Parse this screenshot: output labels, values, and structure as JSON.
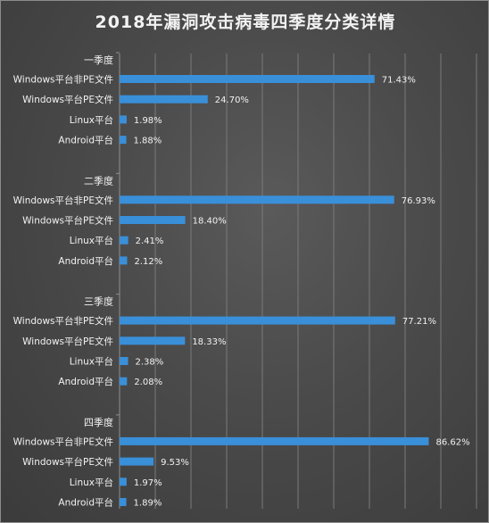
{
  "chart_data": {
    "type": "bar",
    "orientation": "horizontal",
    "title": "2018年漏洞攻击病毒四季度分类详情",
    "groups": [
      {
        "name": "一季度",
        "items": [
          {
            "label": "Windows平台非PE文件",
            "value": 71.43,
            "display": "71.43%"
          },
          {
            "label": "Windows平台PE文件",
            "value": 24.7,
            "display": "24.70%"
          },
          {
            "label": "Linux平台",
            "value": 1.98,
            "display": "1.98%"
          },
          {
            "label": "Android平台",
            "value": 1.88,
            "display": "1.88%"
          }
        ]
      },
      {
        "name": "二季度",
        "items": [
          {
            "label": "Windows平台非PE文件",
            "value": 76.93,
            "display": "76.93%"
          },
          {
            "label": "Windows平台PE文件",
            "value": 18.4,
            "display": "18.40%"
          },
          {
            "label": "Linux平台",
            "value": 2.41,
            "display": "2.41%"
          },
          {
            "label": "Android平台",
            "value": 2.12,
            "display": "2.12%"
          }
        ]
      },
      {
        "name": "三季度",
        "items": [
          {
            "label": "Windows平台非PE文件",
            "value": 77.21,
            "display": "77.21%"
          },
          {
            "label": "Windows平台PE文件",
            "value": 18.33,
            "display": "18.33%"
          },
          {
            "label": "Linux平台",
            "value": 2.38,
            "display": "2.38%"
          },
          {
            "label": "Android平台",
            "value": 2.08,
            "display": "2.08%"
          }
        ]
      },
      {
        "name": "四季度",
        "items": [
          {
            "label": "Windows平台非PE文件",
            "value": 86.62,
            "display": "86.62%"
          },
          {
            "label": "Windows平台PE文件",
            "value": 9.53,
            "display": "9.53%"
          },
          {
            "label": "Linux平台",
            "value": 1.97,
            "display": "1.97%"
          },
          {
            "label": "Android平台",
            "value": 1.89,
            "display": "1.89%"
          }
        ]
      }
    ],
    "xlim": [
      0,
      100
    ],
    "grid": true,
    "bar_color": "#3a8fd9"
  }
}
